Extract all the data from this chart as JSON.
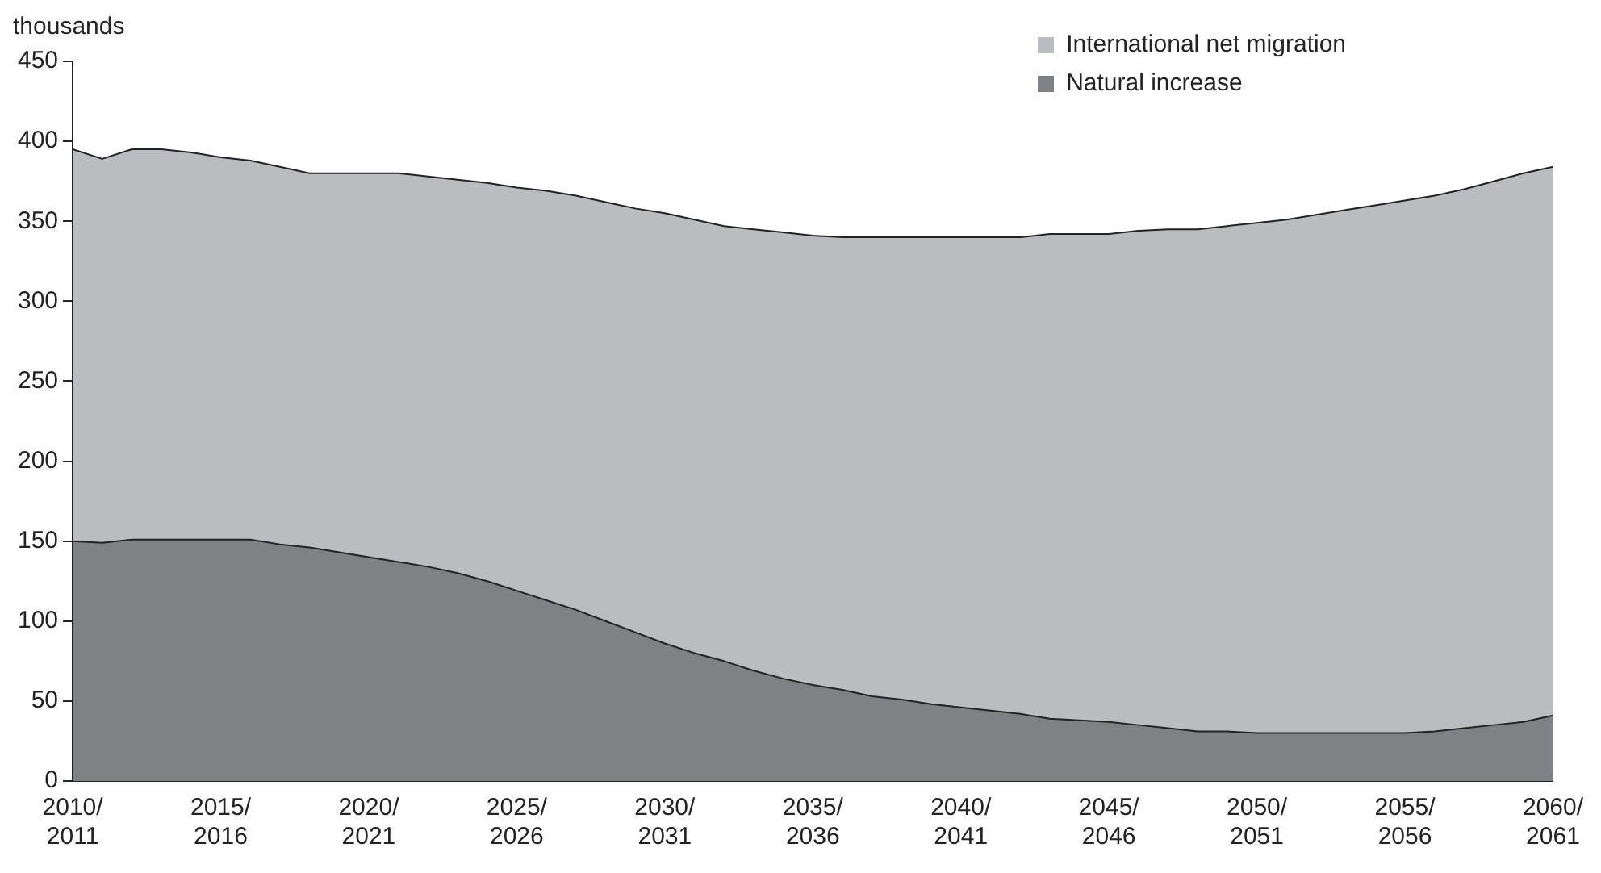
{
  "chart_data": {
    "type": "area",
    "ylabel": "thousands",
    "stacked": true,
    "categories": [
      "2010/2011",
      null,
      null,
      null,
      null,
      "2015/2016",
      null,
      null,
      null,
      null,
      "2020/2021",
      null,
      null,
      null,
      null,
      "2025/2026",
      null,
      null,
      null,
      null,
      "2030/2031",
      null,
      null,
      null,
      null,
      "2035/2036",
      null,
      null,
      null,
      null,
      "2040/2041",
      null,
      null,
      null,
      null,
      "2045/2046",
      null,
      null,
      null,
      null,
      "2050/2051",
      null,
      null,
      null,
      null,
      "2055/2056",
      null,
      null,
      null,
      null,
      "2060/2061"
    ],
    "series": [
      {
        "name": "Natural increase",
        "color": "#808185",
        "values": [
          150,
          149,
          151,
          151,
          151,
          151,
          151,
          148,
          146,
          143,
          140,
          137,
          134,
          130,
          125,
          119,
          113,
          107,
          100,
          93,
          86,
          80,
          75,
          69,
          64,
          60,
          57,
          53,
          51,
          48,
          46,
          44,
          42,
          39,
          38,
          37,
          35,
          33,
          31,
          31,
          30,
          30,
          30,
          30,
          30,
          30,
          31,
          33,
          35,
          37,
          41
        ]
      },
      {
        "name": "International net migration",
        "color": "#bbbcc0",
        "values": [
          245,
          240,
          244,
          244,
          242,
          239,
          237,
          236,
          234,
          237,
          240,
          243,
          244,
          246,
          249,
          252,
          256,
          259,
          262,
          265,
          269,
          271,
          272,
          276,
          279,
          281,
          283,
          287,
          289,
          292,
          294,
          296,
          298,
          303,
          304,
          305,
          309,
          312,
          314,
          316,
          319,
          321,
          324,
          327,
          330,
          333,
          335,
          337,
          340,
          343,
          343
        ]
      }
    ],
    "ylim": [
      0,
      450
    ],
    "yticks": [
      0,
      50,
      100,
      150,
      200,
      250,
      300,
      350,
      400,
      450
    ],
    "grid": false,
    "legend": "top right"
  }
}
